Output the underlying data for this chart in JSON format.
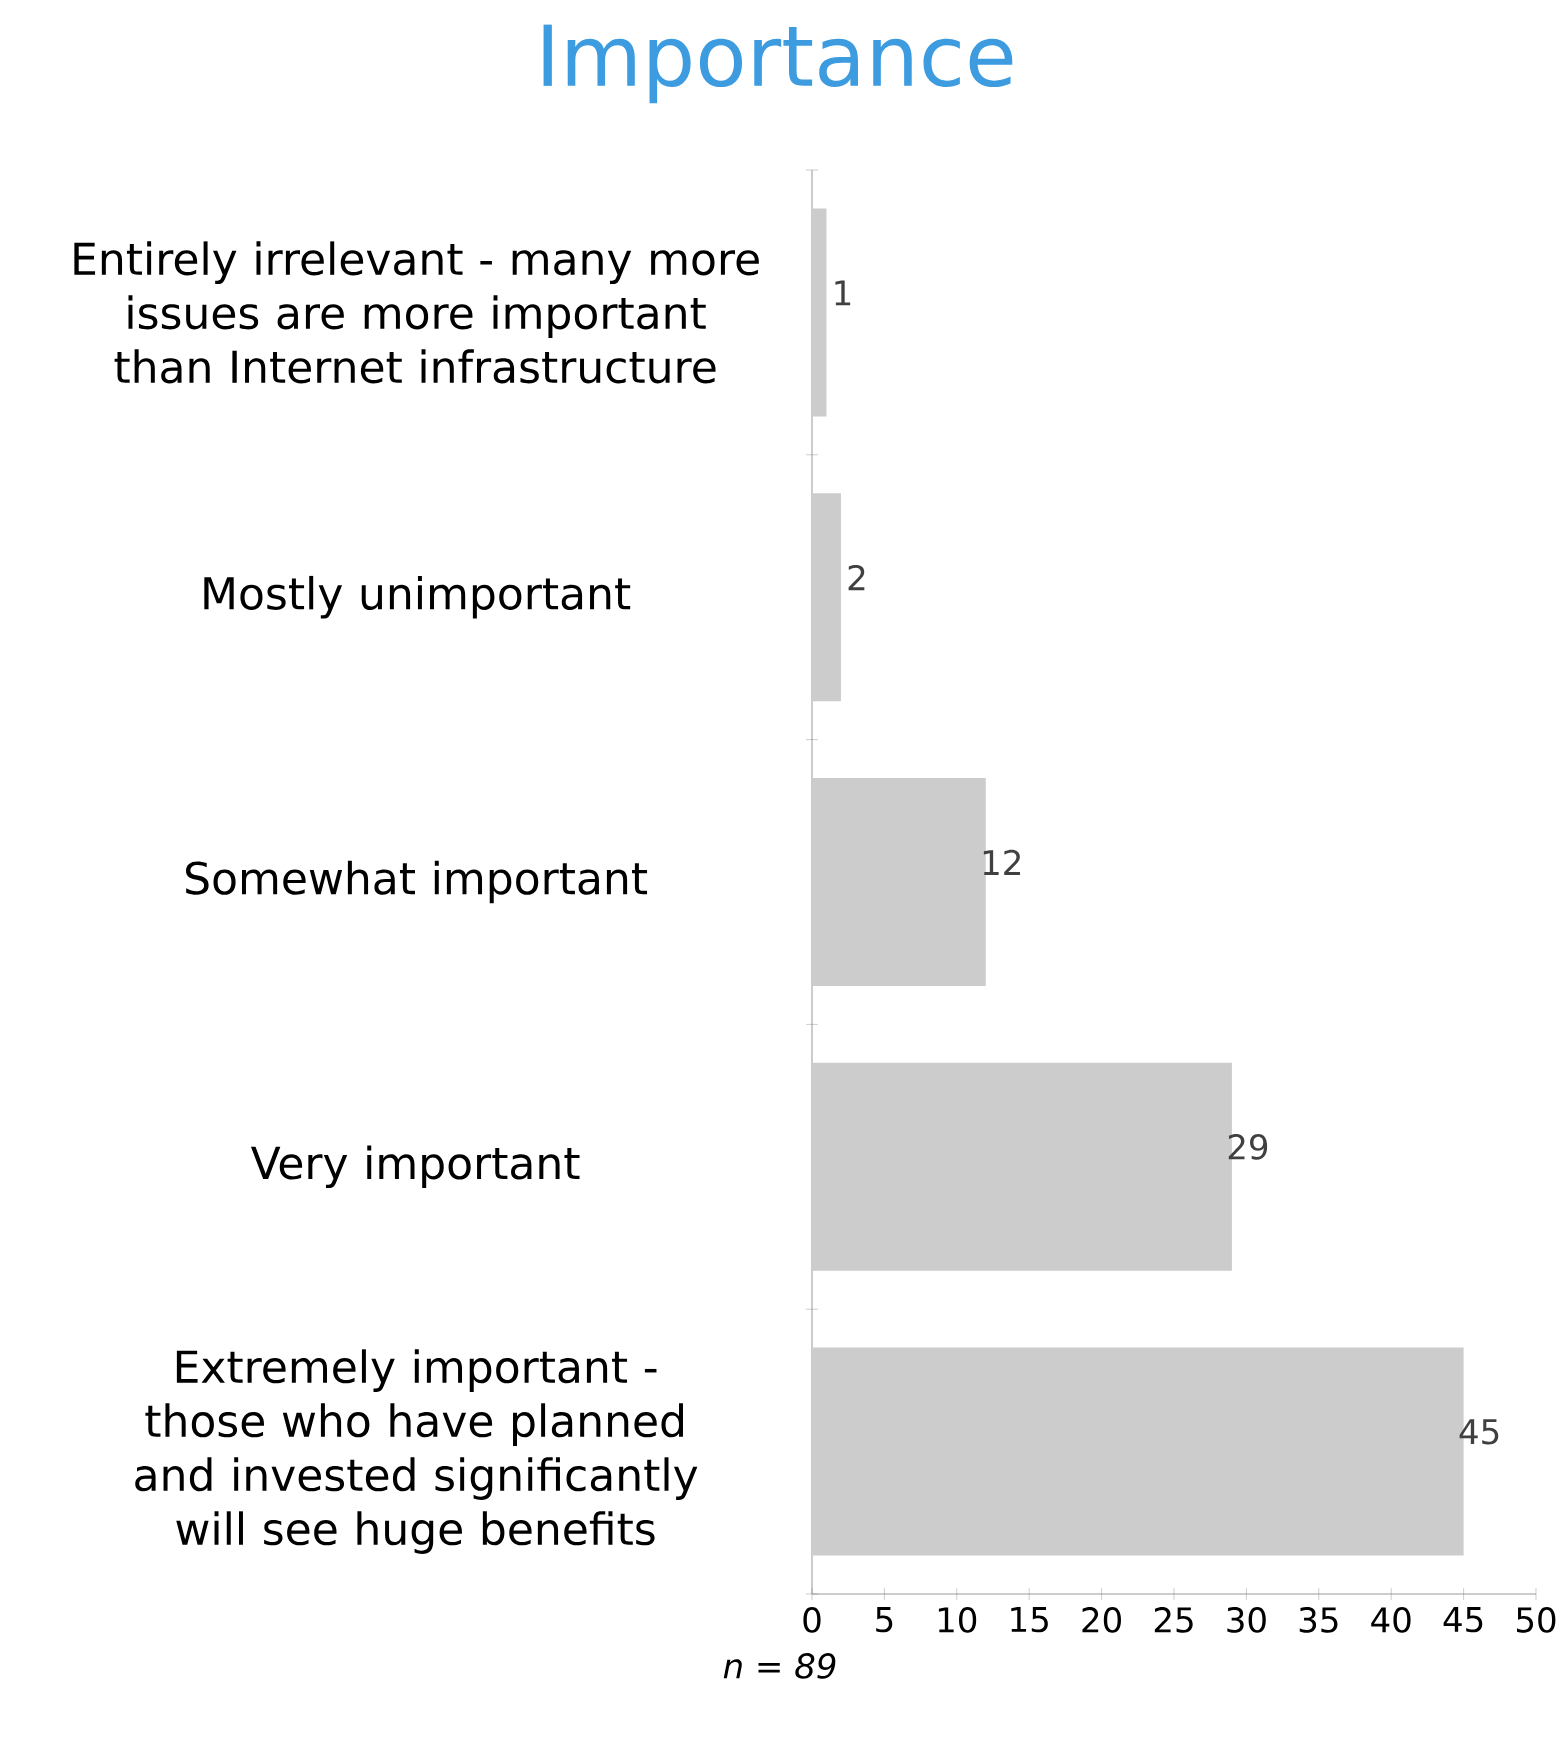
{
  "chart_data": {
    "type": "bar",
    "orientation": "horizontal",
    "title": "Importance",
    "categories": [
      "Entirely irrelevant - many more issues are more important than Internet infrastructure",
      "Mostly unimportant",
      "Somewhat important",
      "Very important",
      "Extremely important - those who have planned and invested significantly will see huge benefits"
    ],
    "values": [
      1,
      2,
      12,
      29,
      45
    ],
    "color": "#cccccc",
    "data_labels": true,
    "xlim": [
      0,
      50
    ],
    "xticks": [
      0,
      5,
      10,
      15,
      20,
      25,
      30,
      35,
      40,
      45,
      50
    ],
    "annotations": [
      "n = 89"
    ]
  }
}
